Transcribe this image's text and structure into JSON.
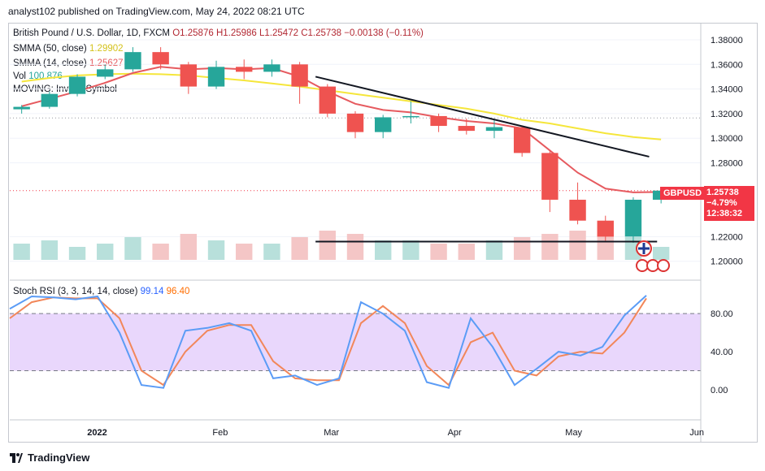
{
  "header": {
    "text": "analyst102 published on TradingView.com, May 24, 2022 08:21 UTC"
  },
  "legend": {
    "symbol": "British Pound / U.S. Dollar, 1D, FXCM",
    "o": "O1.25876",
    "h": "H1.25986",
    "l": "L1.25472",
    "c": "C1.25738",
    "change": "−0.00138 (−0.11%)",
    "smma50": "SMMA (50, close)",
    "smma50_val": "1.29902",
    "smma14": "SMMA (14, close)",
    "smma14_val": "1.25627",
    "vol": "Vol",
    "vol_val": "100.876",
    "moving": "MOVING: Invalid Symbol"
  },
  "price_badge": {
    "symbol": "GBPUSD",
    "price": "1.25738",
    "change_pct": "−4.79%",
    "countdown": "12:38:32"
  },
  "stoch_legend": {
    "label": "Stoch RSI (3, 3, 14, 14, close)",
    "k": "99.14",
    "d": "96.40"
  },
  "price_axis": [
    "1.38000",
    "1.36000",
    "1.34000",
    "1.32000",
    "1.30000",
    "1.28000",
    "1.22000",
    "1.20000"
  ],
  "rsi_axis": [
    "80.00",
    "40.00",
    "0.00"
  ],
  "time_axis": [
    "2022",
    "Feb",
    "Mar",
    "Apr",
    "May",
    "Jun"
  ],
  "footer": {
    "brand": "TradingView"
  },
  "colors": {
    "up": "#26a69a",
    "down": "#ef5350",
    "smma50": "#f5e63b",
    "smma14": "#e65a5f",
    "k": "#5b9cf6",
    "d": "#f2875a",
    "band": "#e9d7fc"
  },
  "chart_data": {
    "type": "candlestick",
    "ylim": [
      1.19,
      1.39
    ],
    "candles": [
      {
        "date": "2021-12-13",
        "o": 1.3235,
        "h": 1.327,
        "l": 1.32,
        "c": 1.3255
      },
      {
        "date": "2021-12-20",
        "o": 1.3255,
        "h": 1.338,
        "l": 1.324,
        "c": 1.336
      },
      {
        "date": "2021-12-27",
        "o": 1.336,
        "h": 1.352,
        "l": 1.334,
        "c": 1.35
      },
      {
        "date": "2022-01-03",
        "o": 1.35,
        "h": 1.36,
        "l": 1.348,
        "c": 1.356
      },
      {
        "date": "2022-01-10",
        "o": 1.356,
        "h": 1.374,
        "l": 1.354,
        "c": 1.37
      },
      {
        "date": "2022-01-17",
        "o": 1.37,
        "h": 1.374,
        "l": 1.356,
        "c": 1.36
      },
      {
        "date": "2022-01-24",
        "o": 1.36,
        "h": 1.362,
        "l": 1.336,
        "c": 1.342
      },
      {
        "date": "2022-01-31",
        "o": 1.342,
        "h": 1.363,
        "l": 1.34,
        "c": 1.358
      },
      {
        "date": "2022-02-07",
        "o": 1.358,
        "h": 1.364,
        "l": 1.348,
        "c": 1.354
      },
      {
        "date": "2022-02-14",
        "o": 1.354,
        "h": 1.364,
        "l": 1.35,
        "c": 1.36
      },
      {
        "date": "2022-02-21",
        "o": 1.36,
        "h": 1.362,
        "l": 1.328,
        "c": 1.342
      },
      {
        "date": "2022-02-28",
        "o": 1.342,
        "h": 1.344,
        "l": 1.317,
        "c": 1.32
      },
      {
        "date": "2022-03-07",
        "o": 1.32,
        "h": 1.322,
        "l": 1.3,
        "c": 1.305
      },
      {
        "date": "2022-03-14",
        "o": 1.305,
        "h": 1.319,
        "l": 1.3,
        "c": 1.317
      },
      {
        "date": "2022-03-21",
        "o": 1.317,
        "h": 1.33,
        "l": 1.312,
        "c": 1.318
      },
      {
        "date": "2022-03-28",
        "o": 1.318,
        "h": 1.32,
        "l": 1.305,
        "c": 1.31
      },
      {
        "date": "2022-04-04",
        "o": 1.31,
        "h": 1.316,
        "l": 1.303,
        "c": 1.306
      },
      {
        "date": "2022-04-11",
        "o": 1.306,
        "h": 1.315,
        "l": 1.3,
        "c": 1.309
      },
      {
        "date": "2022-04-18",
        "o": 1.309,
        "h": 1.31,
        "l": 1.285,
        "c": 1.288
      },
      {
        "date": "2022-04-25",
        "o": 1.288,
        "h": 1.29,
        "l": 1.24,
        "c": 1.25
      },
      {
        "date": "2022-05-02",
        "o": 1.25,
        "h": 1.264,
        "l": 1.23,
        "c": 1.233
      },
      {
        "date": "2022-05-09",
        "o": 1.233,
        "h": 1.237,
        "l": 1.216,
        "c": 1.22
      },
      {
        "date": "2022-05-16",
        "o": 1.22,
        "h": 1.252,
        "l": 1.215,
        "c": 1.25
      },
      {
        "date": "2022-05-23",
        "o": 1.25,
        "h": 1.2599,
        "l": 1.247,
        "c": 1.2574
      }
    ],
    "smma50": [
      1.346,
      1.349,
      1.351,
      1.352,
      1.3525,
      1.352,
      1.351,
      1.349,
      1.347,
      1.3445,
      1.342,
      1.339,
      1.336,
      1.333,
      1.33,
      1.327,
      1.324,
      1.32,
      1.315,
      1.312,
      1.308,
      1.304,
      1.301,
      1.299
    ],
    "smma14": [
      1.326,
      1.332,
      1.338,
      1.345,
      1.353,
      1.358,
      1.356,
      1.357,
      1.356,
      1.357,
      1.35,
      1.338,
      1.328,
      1.323,
      1.321,
      1.317,
      1.314,
      1.312,
      1.308,
      1.29,
      1.272,
      1.259,
      1.256,
      1.2563
    ],
    "trendline": [
      {
        "date": "2022-02-25",
        "price": 1.35
      },
      {
        "date": "2022-05-20",
        "price": 1.285
      }
    ],
    "support_line": 1.216,
    "volume": [
      0.5,
      0.6,
      0.4,
      0.5,
      0.7,
      0.5,
      0.8,
      0.6,
      0.5,
      0.5,
      0.7,
      0.9,
      0.8,
      0.6,
      0.6,
      0.5,
      0.5,
      0.6,
      0.7,
      0.8,
      0.9,
      0.8,
      0.7,
      0.4
    ],
    "stoch_k": [
      85,
      98,
      97,
      95,
      98,
      60,
      5,
      2,
      62,
      65,
      70,
      62,
      12,
      15,
      5,
      12,
      92,
      80,
      62,
      8,
      2,
      75,
      45,
      5,
      22,
      40,
      36,
      45,
      78,
      99
    ],
    "stoch_d": [
      75,
      92,
      97,
      96,
      96,
      75,
      20,
      5,
      40,
      62,
      68,
      68,
      30,
      12,
      10,
      10,
      70,
      88,
      70,
      25,
      5,
      50,
      60,
      20,
      15,
      35,
      40,
      38,
      60,
      96
    ]
  }
}
